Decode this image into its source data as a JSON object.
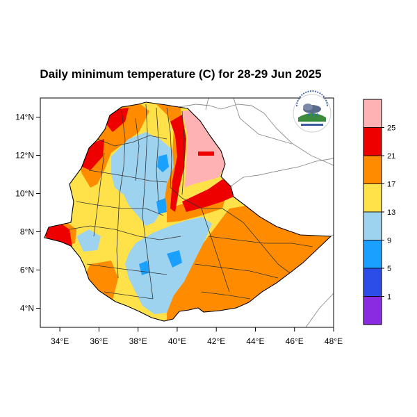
{
  "title": "Daily minimum temperature (C) for 28-29 Jun 2025",
  "map": {
    "lon_range": [
      33,
      48
    ],
    "lat_range": [
      3,
      15
    ],
    "x_ticks": [
      {
        "lon": 34,
        "label": "34°E"
      },
      {
        "lon": 36,
        "label": "36°E"
      },
      {
        "lon": 38,
        "label": "38°E"
      },
      {
        "lon": 40,
        "label": "40°E"
      },
      {
        "lon": 42,
        "label": "42°E"
      },
      {
        "lon": 44,
        "label": "44°E"
      },
      {
        "lon": 46,
        "label": "46°E"
      },
      {
        "lon": 48,
        "label": "48°E"
      }
    ],
    "y_ticks": [
      {
        "lat": 4,
        "label": "4°N"
      },
      {
        "lat": 6,
        "label": "6°N"
      },
      {
        "lat": 8,
        "label": "8°N"
      },
      {
        "lat": 10,
        "label": "10°N"
      },
      {
        "lat": 12,
        "label": "12°N"
      },
      {
        "lat": 14,
        "label": "14°N"
      }
    ]
  },
  "legend": {
    "bins": [
      {
        "color": "#ffb2b4"
      },
      {
        "color": "#ee0000"
      },
      {
        "color": "#ff8c00"
      },
      {
        "color": "#ffe24a"
      },
      {
        "color": "#9ed3f0"
      },
      {
        "color": "#1aa0ff"
      },
      {
        "color": "#2d4de8"
      },
      {
        "color": "#8a2be2"
      }
    ],
    "labels": [
      "25",
      "21",
      "17",
      "13",
      "9",
      "5",
      "1"
    ]
  },
  "colors": {
    "pink": "#ffb2b4",
    "red": "#ee0000",
    "orange": "#ff8c00",
    "yellow": "#ffe24a",
    "light_blue": "#9ed3f0",
    "blue": "#1aa0ff"
  }
}
